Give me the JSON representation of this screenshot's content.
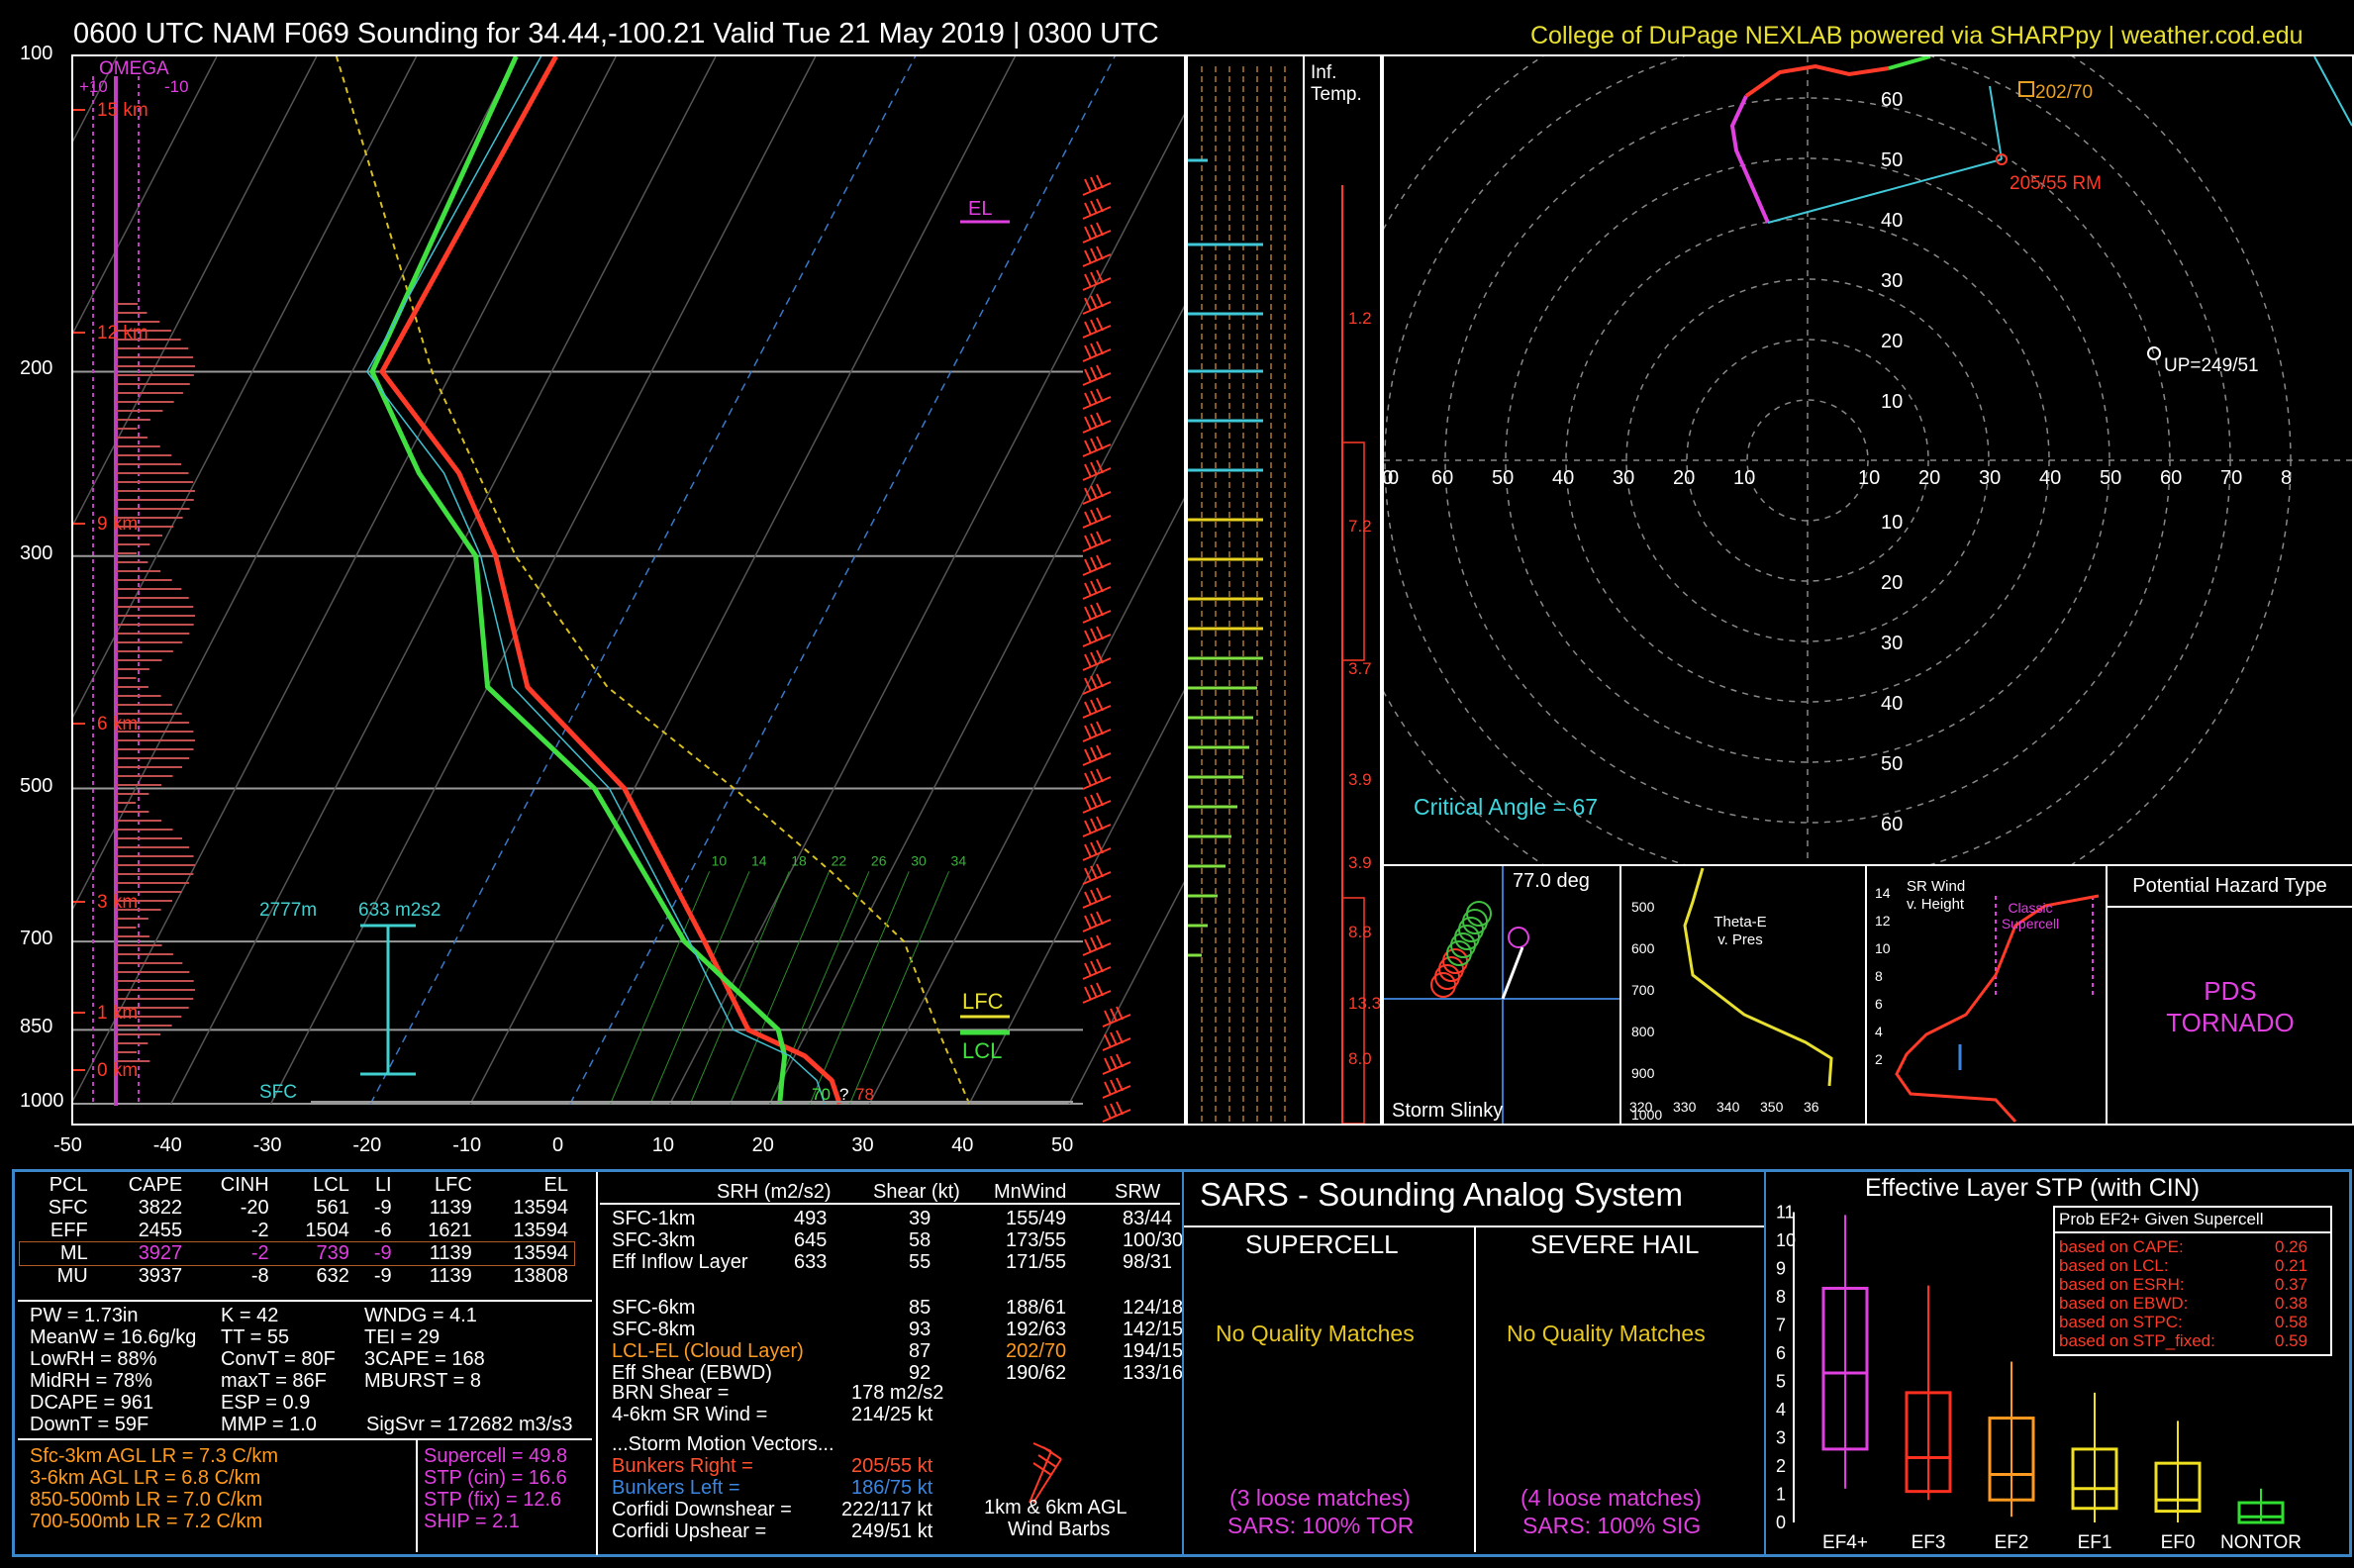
{
  "header": {
    "title": "0600 UTC NAM F069 Sounding for 34.44,-100.21 Valid  Tue 21 May 2019 | 0300 UTC",
    "credit": "College of DuPage NEXLAB powered via SHARPpy | weather.cod.edu"
  },
  "skewt": {
    "pressure_ticks": [
      "100",
      "200",
      "300",
      "500",
      "700",
      "850",
      "1000"
    ],
    "temp_ticks": [
      "-50",
      "-40",
      "-30",
      "-20",
      "-10",
      "0",
      "10",
      "20",
      "30",
      "40",
      "50"
    ],
    "omega_label": "OMEGA",
    "omega_scale": [
      "+10",
      "-10"
    ],
    "height_labels": [
      "15 km",
      "12 km",
      "9 km",
      "6 km",
      "3 km",
      "1 km",
      "0 km"
    ],
    "el_label": "EL",
    "lfc_label": "LFC",
    "lcl_label": "LCL",
    "sfc_label": "SFC",
    "inflow_depth": "2777m",
    "inflow_srh": "633 m2s2",
    "sfc_td": "70",
    "sfc_q": "?",
    "sfc_t": "78",
    "wetbulb_labels": [
      "10",
      "14",
      "18",
      "22",
      "26",
      "30",
      "34"
    ]
  },
  "inf_temp": {
    "title": "Inf. Temp.",
    "values": [
      "1.2",
      "7.2",
      "3.7",
      "3.9",
      "3.9",
      "8.8",
      "13.3",
      "8.0"
    ]
  },
  "hodograph": {
    "rings": [
      "10",
      "20",
      "30",
      "40",
      "50",
      "60"
    ],
    "axis_left": [
      "0",
      "70",
      "60",
      "50",
      "40",
      "30",
      "20",
      "10"
    ],
    "axis_right": [
      "10",
      "20",
      "30",
      "40",
      "50",
      "60",
      "70",
      "8"
    ],
    "rm_label": "205/55 RM",
    "mean_label": "202/70",
    "up_label": "UP=249/51",
    "critical_angle": "Critical Angle = 67"
  },
  "slinky": {
    "angle": "77.0 deg",
    "title": "Storm Slinky"
  },
  "thetae": {
    "title": "Theta-E v. Pres",
    "pres_ticks": [
      "500",
      "600",
      "700",
      "800",
      "900",
      "1000"
    ],
    "theta_ticks": [
      "320",
      "330",
      "340",
      "350",
      "36"
    ]
  },
  "srwind": {
    "title": "SR Wind v. Height",
    "classic": "Classic Supercell",
    "h_ticks": [
      "14",
      "12",
      "10",
      "8",
      "6",
      "4",
      "2"
    ]
  },
  "hazard": {
    "title": "Potential Hazard Type",
    "value": "PDS TORNADO"
  },
  "parcels": {
    "headers": [
      "PCL",
      "CAPE",
      "CINH",
      "LCL",
      "LI",
      "LFC",
      "EL"
    ],
    "rows": [
      [
        "SFC",
        "3822",
        "-20",
        "561",
        "-9",
        "1139",
        "13594"
      ],
      [
        "EFF",
        "2455",
        "-2",
        "1504",
        "-6",
        "1621",
        "13594"
      ],
      [
        "ML",
        "3927",
        "-2",
        "739",
        "-9",
        "1139",
        "13594"
      ],
      [
        "MU",
        "3937",
        "-8",
        "632",
        "-9",
        "1139",
        "13808"
      ]
    ]
  },
  "indices": {
    "col1": [
      "PW = 1.73in",
      "MeanW = 16.6g/kg",
      "LowRH = 88%",
      "MidRH = 78%",
      "DCAPE = 961",
      "DownT = 59F"
    ],
    "col2": [
      "K = 42",
      "TT = 55",
      "ConvT = 80F",
      "maxT = 86F",
      "ESP = 0.9",
      "MMP = 1.0"
    ],
    "col3": [
      "WNDG = 4.1",
      "TEI = 29",
      "3CAPE = 168",
      "MBURST = 8",
      "",
      ""
    ],
    "sigsvr": "SigSvr = 172682 m3/s3"
  },
  "lapse": [
    "Sfc-3km AGL LR = 7.3 C/km",
    "3-6km AGL LR = 6.8 C/km",
    "850-500mb LR = 7.0 C/km",
    "700-500mb LR = 7.2 C/km"
  ],
  "composites": [
    "Supercell = 49.8",
    "STP (cin) = 16.6",
    "STP (fix) = 12.6",
    "SHIP = 2.1"
  ],
  "kinematics": {
    "headers": [
      "SRH (m2/s2)",
      "Shear (kt)",
      "MnWind",
      "SRW"
    ],
    "rows": [
      [
        "SFC-1km",
        "493",
        "39",
        "155/49",
        "83/44"
      ],
      [
        "SFC-3km",
        "645",
        "58",
        "173/55",
        "100/30"
      ],
      [
        "Eff Inflow Layer",
        "633",
        "55",
        "171/55",
        "98/31"
      ],
      [
        "",
        "",
        "",
        "",
        ""
      ],
      [
        "SFC-6km",
        "",
        "85",
        "188/61",
        "124/18"
      ],
      [
        "SFC-8km",
        "",
        "93",
        "192/63",
        "142/15"
      ],
      [
        "LCL-EL (Cloud Layer)",
        "",
        "87",
        "202/70",
        "194/15"
      ],
      [
        "Eff Shear (EBWD)",
        "",
        "92",
        "190/62",
        "133/16"
      ]
    ],
    "brn_label": "BRN Shear =",
    "brn_val": "178 m2/s2",
    "sr46_label": "4-6km SR Wind =",
    "sr46_val": "214/25 kt",
    "smv_title": "...Storm Motion Vectors...",
    "br_label": "Bunkers Right =",
    "br_val": "205/55 kt",
    "bl_label": "Bunkers Left =",
    "bl_val": "186/75 kt",
    "cd_label": "Corfidi Downshear =",
    "cd_val": "222/117 kt",
    "cu_label": "Corfidi Upshear =",
    "cu_val": "249/51 kt",
    "barb_label1": "1km & 6km AGL",
    "barb_label2": "Wind Barbs"
  },
  "sars": {
    "title": "SARS - Sounding Analog System",
    "supercell": "SUPERCELL",
    "hail": "SEVERE HAIL",
    "sup_match": "No Quality Matches",
    "hail_match": "No Quality Matches",
    "sup_loose": "(3 loose matches)",
    "hail_loose": "(4 loose matches)",
    "sup_pct": "SARS: 100% TOR",
    "hail_pct": "SARS: 100% SIG"
  },
  "stp": {
    "title": "Effective Layer STP (with CIN)",
    "prob_title": "Prob EF2+ Given Supercell",
    "probs": [
      [
        "based on CAPE:",
        "0.26"
      ],
      [
        "based on LCL:",
        "0.21"
      ],
      [
        "based on ESRH:",
        "0.37"
      ],
      [
        "based on EBWD:",
        "0.38"
      ],
      [
        "based on STPC:",
        "0.58"
      ],
      [
        "based on STP_fixed:",
        "0.59"
      ]
    ],
    "y_ticks": [
      "0",
      "1",
      "2",
      "3",
      "4",
      "5",
      "6",
      "7",
      "8",
      "9",
      "10",
      "11"
    ],
    "categories": [
      "EF4+",
      "EF3",
      "EF2",
      "EF1",
      "EF0",
      "NONTOR"
    ],
    "colors": [
      "#e040e0",
      "#ff3020",
      "#ff9a20",
      "#f0e020",
      "#f0e020",
      "#30e030"
    ]
  },
  "chart_data": [
    {
      "type": "line",
      "title": "0600 UTC NAM F069 Sounding for 34.44,-100.21 Valid  Tue 21 May 2019 | 0300 UTC",
      "xlabel": "",
      "ylabel": "",
      "xlim": [
        -50,
        50
      ],
      "ylim": [
        1000,
        100
      ],
      "yscale": "log",
      "series": [
        {
          "color": "#ff3a28",
          "x": [
            27,
            25,
            21,
            14,
            5,
            -11,
            -26,
            -36,
            -44,
            -57,
            -56
          ],
          "y": [
            1000,
            950,
            900,
            850,
            700,
            500,
            400,
            300,
            250,
            200,
            100
          ]
        },
        {
          "color": "#40e040",
          "x": [
            21,
            20,
            19,
            17,
            3,
            -14,
            -30,
            -38,
            -48,
            -58,
            -60
          ],
          "y": [
            1000,
            950,
            900,
            850,
            700,
            500,
            400,
            300,
            250,
            200,
            100
          ]
        }
      ]
    },
    {
      "type": "box",
      "title": "Effective Layer STP (with CIN)",
      "categories": [
        "EF4+",
        "EF3",
        "EF2",
        "EF1",
        "EF0",
        "NONTOR"
      ],
      "ylim": [
        0,
        11
      ],
      "series": [
        {
          "q": [
            [
              1.2,
              2.6,
              5.3,
              8.3,
              10.9
            ],
            [
              0.8,
              1.1,
              2.3,
              4.6,
              8.4
            ],
            [
              0.2,
              0.8,
              1.7,
              3.7,
              5.7
            ],
            [
              0.0,
              0.5,
              1.2,
              2.6,
              4.6
            ],
            [
              0.0,
              0.4,
              0.8,
              2.1,
              3.6
            ],
            [
              0.0,
              0.0,
              0.2,
              0.7,
              1.2
            ]
          ]
        }
      ]
    }
  ]
}
